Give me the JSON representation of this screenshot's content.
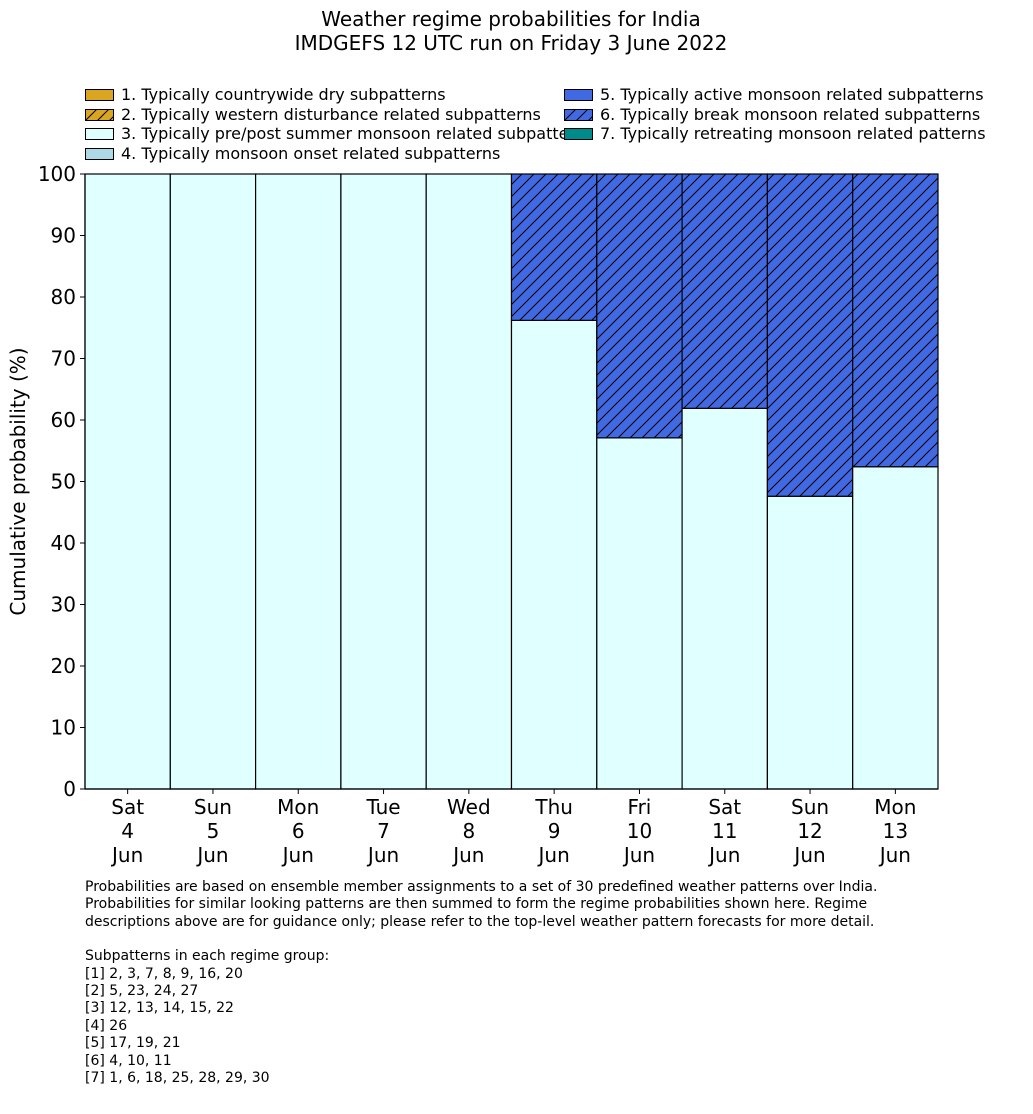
{
  "chart_data": {
    "type": "bar",
    "title": "Weather regime probabilities for India",
    "subtitle": "IMDGEFS 12 UTC run on Friday 3 June 2022",
    "ylabel": "Cumulative probability (%)",
    "xlabel": "",
    "ylim": [
      0,
      100
    ],
    "yticks": [
      0,
      10,
      20,
      30,
      40,
      50,
      60,
      70,
      80,
      90,
      100
    ],
    "stacked": true,
    "categories": [
      {
        "day": "Sat",
        "date": "4",
        "month": "Jun"
      },
      {
        "day": "Sun",
        "date": "5",
        "month": "Jun"
      },
      {
        "day": "Mon",
        "date": "6",
        "month": "Jun"
      },
      {
        "day": "Tue",
        "date": "7",
        "month": "Jun"
      },
      {
        "day": "Wed",
        "date": "8",
        "month": "Jun"
      },
      {
        "day": "Thu",
        "date": "9",
        "month": "Jun"
      },
      {
        "day": "Fri",
        "date": "10",
        "month": "Jun"
      },
      {
        "day": "Sat",
        "date": "11",
        "month": "Jun"
      },
      {
        "day": "Sun",
        "date": "12",
        "month": "Jun"
      },
      {
        "day": "Mon",
        "date": "13",
        "month": "Jun"
      }
    ],
    "series": [
      {
        "name": "1. Typically countrywide dry subpatterns",
        "color": "#daa520",
        "hatch": false,
        "values": [
          0,
          0,
          0,
          0,
          0,
          0,
          0,
          0,
          0,
          0
        ]
      },
      {
        "name": "2. Typically western disturbance related subpatterns",
        "color": "#daa520",
        "hatch": true,
        "values": [
          0,
          0,
          0,
          0,
          0,
          0,
          0,
          0,
          0,
          0
        ]
      },
      {
        "name": "3. Typically pre/post summer monsoon related subpatterns",
        "color": "#e0ffff",
        "hatch": false,
        "values": [
          100,
          100,
          100,
          100,
          100,
          76.2,
          57.1,
          61.9,
          47.6,
          52.4
        ]
      },
      {
        "name": "4. Typically monsoon onset related subpatterns",
        "color": "#add8e6",
        "hatch": false,
        "values": [
          0,
          0,
          0,
          0,
          0,
          0,
          0,
          0,
          0,
          0
        ]
      },
      {
        "name": "5. Typically active monsoon related subpatterns",
        "color": "#4169e1",
        "hatch": false,
        "values": [
          0,
          0,
          0,
          0,
          0,
          0,
          0,
          0,
          0,
          0
        ]
      },
      {
        "name": "6. Typically break monsoon related subpatterns",
        "color": "#4169e1",
        "hatch": true,
        "values": [
          0,
          0,
          0,
          0,
          0,
          23.8,
          42.9,
          38.1,
          52.4,
          47.6
        ]
      },
      {
        "name": "7. Typically retreating monsoon related patterns",
        "color": "#008b8b",
        "hatch": false,
        "values": [
          0,
          0,
          0,
          0,
          0,
          0,
          0,
          0,
          0,
          0
        ]
      }
    ],
    "legend_position": "top"
  },
  "notes": {
    "paragraph": "Probabilities are based on ensemble member assignments to a set of 30 predefined weather patterns over India.\nProbabilities for similar looking patterns are then summed to form the regime probabilities shown here. Regime\ndescriptions above are for guidance only; please refer to the top-level weather pattern forecasts for more detail.",
    "groups_heading": "Subpatterns in each regime group:",
    "groups": [
      "[1] 2, 3, 7, 8, 9, 16, 20",
      "[2] 5, 23, 24, 27",
      "[3] 12, 13, 14, 15, 22",
      "[4] 26",
      "[5] 17, 19, 21",
      "[6] 4, 10, 11",
      "[7] 1, 6, 18, 25, 28, 29, 30"
    ]
  }
}
